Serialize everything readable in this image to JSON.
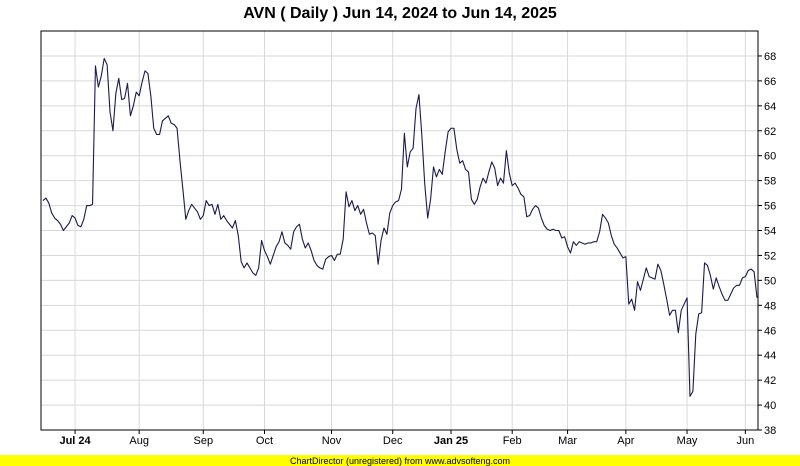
{
  "chart_data": {
    "type": "line",
    "title": "AVN ( Daily ) Jun 14, 2024 to Jun 14, 2025",
    "footer": "ChartDirector (unregistered) from www.advsofteng.com",
    "ylim": [
      38,
      70
    ],
    "y_ticks": [
      38,
      40,
      42,
      44,
      46,
      48,
      50,
      52,
      54,
      56,
      58,
      60,
      62,
      64,
      66,
      68
    ],
    "x_tick_labels": [
      {
        "label": "Jul 24",
        "index": 11,
        "bold": true
      },
      {
        "label": "Aug",
        "index": 33,
        "bold": false
      },
      {
        "label": "Sep",
        "index": 55,
        "bold": false
      },
      {
        "label": "Oct",
        "index": 76,
        "bold": false
      },
      {
        "label": "Nov",
        "index": 99,
        "bold": false
      },
      {
        "label": "Dec",
        "index": 120,
        "bold": false
      },
      {
        "label": "Jan 25",
        "index": 140,
        "bold": true
      },
      {
        "label": "Feb",
        "index": 161,
        "bold": false
      },
      {
        "label": "Mar",
        "index": 180,
        "bold": false
      },
      {
        "label": "Apr",
        "index": 200,
        "bold": false
      },
      {
        "label": "May",
        "index": 221,
        "bold": false
      },
      {
        "label": "Jun",
        "index": 241,
        "bold": false
      }
    ],
    "grid": true,
    "line_color": "#1a1a4e",
    "series": [
      {
        "values": [
          56.4,
          56.6,
          56.2,
          55.4,
          55.0,
          54.8,
          54.5,
          54.0,
          54.3,
          54.6,
          55.2,
          55.0,
          54.4,
          54.3,
          54.9,
          56.0,
          56.0,
          56.1,
          67.2,
          65.5,
          66.4,
          67.8,
          67.3,
          63.5,
          62.0,
          65.0,
          66.2,
          64.5,
          64.6,
          65.8,
          63.2,
          64.0,
          65.1,
          64.8,
          65.9,
          66.8,
          66.6,
          64.8,
          62.2,
          61.7,
          61.7,
          62.8,
          63.0,
          63.2,
          62.6,
          62.5,
          62.2,
          59.6,
          57.3,
          54.9,
          55.6,
          56.1,
          55.8,
          55.5,
          54.9,
          55.2,
          56.4,
          56.0,
          56.1,
          55.3,
          56.1,
          54.9,
          55.2,
          54.8,
          54.5,
          54.2,
          54.8,
          53.6,
          51.5,
          51.0,
          51.4,
          51.0,
          50.6,
          50.4,
          51.0,
          53.2,
          52.4,
          51.9,
          51.3,
          52.0,
          52.7,
          53.1,
          53.9,
          53.0,
          52.8,
          52.5,
          53.9,
          54.3,
          54.5,
          53.3,
          52.6,
          53.0,
          52.4,
          51.6,
          51.2,
          51.0,
          50.9,
          51.7,
          51.9,
          52.0,
          51.6,
          52.1,
          52.1,
          53.3,
          57.1,
          55.9,
          56.4,
          55.6,
          56.0,
          55.3,
          55.7,
          54.6,
          53.7,
          53.8,
          53.6,
          51.3,
          53.2,
          54.2,
          53.7,
          55.4,
          56.0,
          56.3,
          56.4,
          57.3,
          61.8,
          59.1,
          60.3,
          60.6,
          63.8,
          64.9,
          61.6,
          57.7,
          55.0,
          56.5,
          59.1,
          58.3,
          58.9,
          58.5,
          60.3,
          61.9,
          62.2,
          62.2,
          60.5,
          59.4,
          59.6,
          58.9,
          58.7,
          56.5,
          56.1,
          56.5,
          57.5,
          58.2,
          57.8,
          58.7,
          59.5,
          59.0,
          57.6,
          58.2,
          57.8,
          60.4,
          58.6,
          57.6,
          57.8,
          57.4,
          56.9,
          56.7,
          55.1,
          55.2,
          55.7,
          56.0,
          55.8,
          55.0,
          54.4,
          54.1,
          54.0,
          54.1,
          54.0,
          54.0,
          53.4,
          53.5,
          52.7,
          52.2,
          53.1,
          52.8,
          53.1,
          53.0,
          52.9,
          53.0,
          53.0,
          53.1,
          53.1,
          53.9,
          55.3,
          55.0,
          54.6,
          53.6,
          52.9,
          52.6,
          52.2,
          51.8,
          51.9,
          48.1,
          48.5,
          47.6,
          49.9,
          49.2,
          50.1,
          51.0,
          50.3,
          50.2,
          50.1,
          51.3,
          50.8,
          49.7,
          48.5,
          47.2,
          47.6,
          47.6,
          45.8,
          47.6,
          48.1,
          48.6,
          40.7,
          41.1,
          45.7,
          47.3,
          47.4,
          51.4,
          51.2,
          50.4,
          49.3,
          50.2,
          49.5,
          48.9,
          48.4,
          48.4,
          48.9,
          49.4,
          49.6,
          49.6,
          50.2,
          50.3,
          50.8,
          50.9,
          50.7,
          48.6
        ]
      }
    ]
  }
}
